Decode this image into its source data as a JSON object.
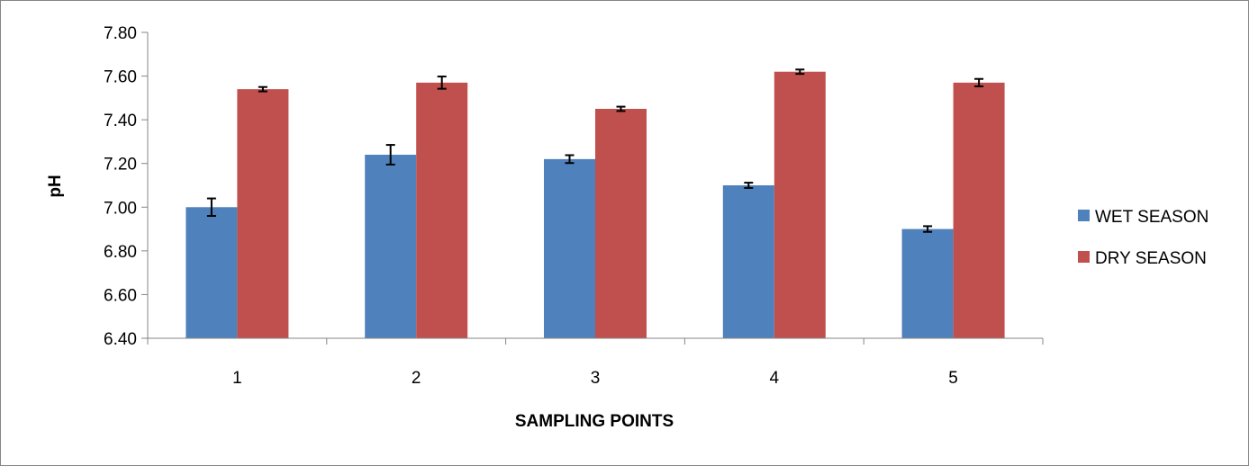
{
  "chart_data": {
    "type": "bar",
    "title": "",
    "xlabel": "SAMPLING POINTS",
    "ylabel": "pH",
    "categories": [
      "1",
      "2",
      "3",
      "4",
      "5"
    ],
    "ylim": [
      6.4,
      7.8
    ],
    "ytick_step": 0.2,
    "yticks": [
      "6.40",
      "6.60",
      "6.80",
      "7.00",
      "7.20",
      "7.40",
      "7.60",
      "7.80"
    ],
    "grid": false,
    "legend_position": "right",
    "series": [
      {
        "name": "WET SEASON",
        "color": "#4f81bd",
        "values": [
          7.0,
          7.24,
          7.22,
          7.1,
          6.9
        ],
        "errors": [
          0.04,
          0.045,
          0.018,
          0.012,
          0.013
        ]
      },
      {
        "name": "DRY SEASON",
        "color": "#c0504d",
        "values": [
          7.54,
          7.57,
          7.45,
          7.62,
          7.57
        ],
        "errors": [
          0.01,
          0.028,
          0.01,
          0.01,
          0.017
        ]
      }
    ]
  }
}
